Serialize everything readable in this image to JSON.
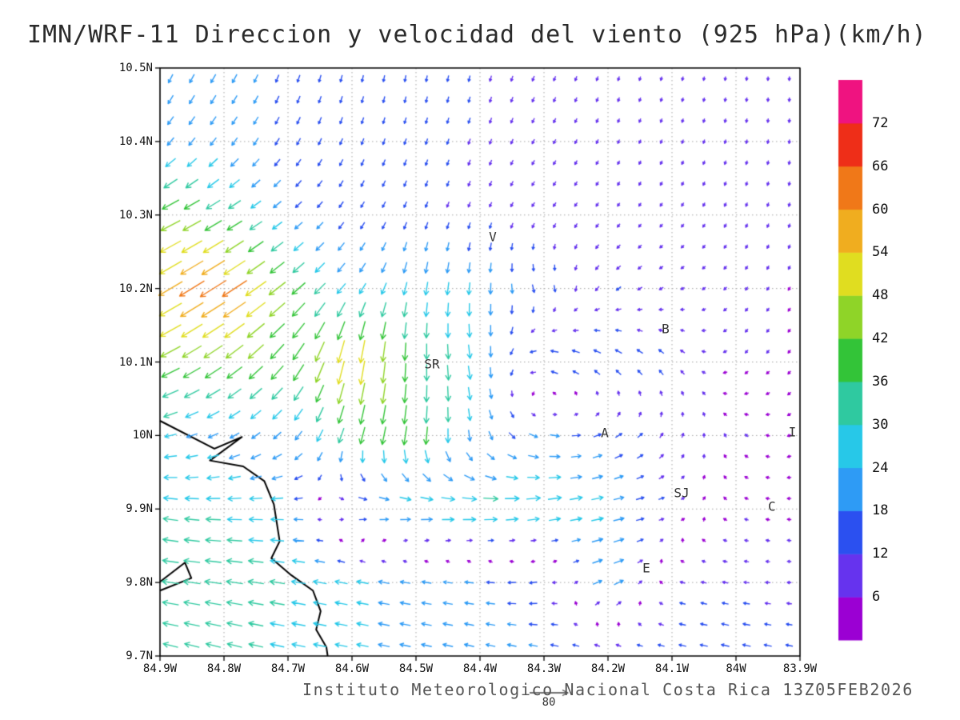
{
  "title": "IMN/WRF-11 Direccion y velocidad del viento (925 hPa)(km/h)",
  "footer": "Instituto Meteorologico Nacional Costa Rica 13Z05FEB2026",
  "chart_data": {
    "type": "vector-field",
    "title": "IMN/WRF-11 Direccion y velocidad del viento (925 hPa)(km/h)",
    "speed_units": "km/h",
    "lon_range": [
      -84.9,
      -83.9
    ],
    "lat_range": [
      9.7,
      10.5
    ],
    "lon_ticks": [
      "84.9W",
      "84.8W",
      "84.7W",
      "84.6W",
      "84.5W",
      "84.4W",
      "84.3W",
      "84.2W",
      "84.1W",
      "84W",
      "83.9W"
    ],
    "lat_ticks": [
      "10.5N",
      "10.4N",
      "10.3N",
      "10.2N",
      "10.1N",
      "10N",
      "9.9N",
      "9.8N",
      "9.7N"
    ],
    "grid_lons": [
      -84.9,
      -84.8,
      -84.7,
      -84.6,
      -84.5,
      -84.4,
      -84.3,
      -84.2,
      -84.1,
      -84.0,
      -83.9
    ],
    "grid_lats": [
      10.5,
      10.4,
      10.3,
      10.2,
      10.1,
      10.0,
      9.9,
      9.8,
      9.7
    ],
    "u": [
      [
        -8,
        -10,
        -5,
        -3,
        -2,
        -3,
        -4,
        -3,
        -2,
        -1,
        0
      ],
      [
        -14,
        -12,
        -8,
        -5,
        -4,
        -4,
        -5,
        -4,
        -3,
        -2,
        -1
      ],
      [
        -40,
        -30,
        -15,
        -8,
        -5,
        -4,
        -6,
        -5,
        -4,
        -3,
        -2
      ],
      [
        -48,
        -55,
        -30,
        -15,
        -5,
        -2,
        5,
        -10,
        -8,
        -4,
        -3
      ],
      [
        -40,
        -35,
        -25,
        -10,
        0,
        5,
        -20,
        -15,
        -10,
        -5,
        -3
      ],
      [
        -25,
        -20,
        -15,
        -10,
        -5,
        5,
        20,
        15,
        5,
        -5,
        -4
      ],
      [
        -30,
        -30,
        -25,
        20,
        30,
        35,
        30,
        25,
        10,
        -5,
        -5
      ],
      [
        -35,
        -35,
        -30,
        -25,
        -20,
        -18,
        -15,
        25,
        -10,
        -12,
        -8
      ],
      [
        -30,
        -30,
        -28,
        -25,
        -22,
        -20,
        -18,
        -15,
        -15,
        -18,
        -15
      ]
    ],
    "v": [
      [
        -18,
        -18,
        -15,
        -14,
        -13,
        -12,
        -10,
        -9,
        -8,
        -8,
        -9
      ],
      [
        -16,
        -16,
        -14,
        -13,
        -12,
        -11,
        -9,
        -8,
        -7,
        -7,
        -8
      ],
      [
        -20,
        -18,
        -12,
        -12,
        -12,
        -10,
        -8,
        -7,
        -6,
        -6,
        -7
      ],
      [
        -28,
        -35,
        -25,
        -20,
        -28,
        -25,
        -15,
        -8,
        -4,
        -5,
        -5
      ],
      [
        -20,
        -25,
        -32,
        -55,
        -35,
        -28,
        5,
        10,
        10,
        -5,
        -4
      ],
      [
        -5,
        -10,
        -15,
        -34,
        -40,
        -20,
        -5,
        8,
        10,
        5,
        -3
      ],
      [
        5,
        0,
        0,
        0,
        0,
        0,
        5,
        5,
        3,
        2,
        0
      ],
      [
        5,
        5,
        5,
        5,
        3,
        2,
        -3,
        10,
        3,
        2,
        0
      ],
      [
        8,
        8,
        6,
        5,
        5,
        5,
        4,
        3,
        3,
        4,
        3
      ]
    ],
    "speed_levels": [
      6,
      12,
      18,
      24,
      30,
      36,
      42,
      48,
      54,
      60,
      66,
      72
    ],
    "colors": [
      "#9b00d3",
      "#6633ee",
      "#2b50f0",
      "#2e9bf5",
      "#27c8e8",
      "#2fc9a0",
      "#33c438",
      "#8fd428",
      "#e0dd20",
      "#f0ad1f",
      "#f07818",
      "#ee2e18",
      "#ef1380"
    ],
    "legend_position": "right",
    "grid": "dotted",
    "arrow_grid": {
      "cols": 30,
      "rows": 28
    },
    "ref_speed": 80,
    "ref_label": "80",
    "cities": [
      {
        "label": "V",
        "lon": -84.38,
        "lat": 10.27
      },
      {
        "label": "B",
        "lon": -84.11,
        "lat": 10.145
      },
      {
        "label": "SR",
        "lon": -84.475,
        "lat": 10.097
      },
      {
        "label": "A",
        "lon": -84.205,
        "lat": 10.004
      },
      {
        "label": "SJ",
        "lon": -84.085,
        "lat": 9.922
      },
      {
        "label": "C",
        "lon": -83.944,
        "lat": 9.904
      },
      {
        "label": "E",
        "lon": -84.14,
        "lat": 9.82
      },
      {
        "label": "I",
        "lon": -83.912,
        "lat": 10.005
      }
    ],
    "coastlines": [
      [
        [
          -84.9,
          10.02
        ],
        [
          -84.815,
          9.982
        ],
        [
          -84.772,
          9.998
        ],
        [
          -84.822,
          9.966
        ],
        [
          -84.77,
          9.958
        ],
        [
          -84.737,
          9.938
        ],
        [
          -84.722,
          9.906
        ],
        [
          -84.713,
          9.856
        ],
        [
          -84.726,
          9.833
        ],
        [
          -84.695,
          9.81
        ],
        [
          -84.661,
          9.789
        ],
        [
          -84.649,
          9.761
        ],
        [
          -84.656,
          9.736
        ],
        [
          -84.64,
          9.712
        ],
        [
          -84.638,
          9.7
        ]
      ],
      [
        [
          -84.9,
          9.801
        ],
        [
          -84.861,
          9.827
        ],
        [
          -84.851,
          9.806
        ],
        [
          -84.9,
          9.789
        ]
      ]
    ]
  }
}
